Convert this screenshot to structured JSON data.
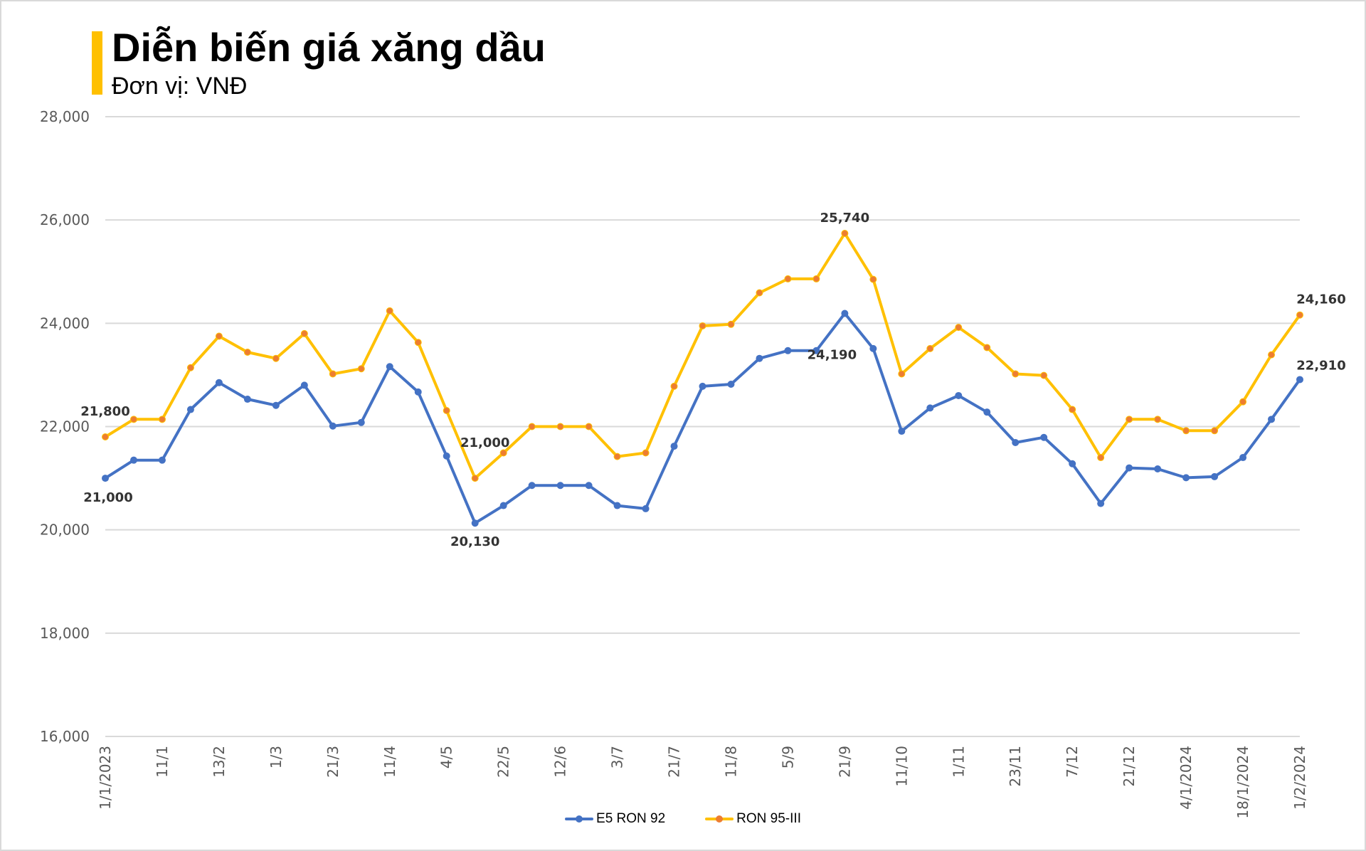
{
  "header": {
    "title": "Diễn biến giá xăng dầu",
    "subtitle": "Đơn vị: VNĐ"
  },
  "colors": {
    "accent": "#ffc000",
    "e5_line": "#4472c4",
    "ron95_line": "#ffc000",
    "ron95_marker": "#ed7d31",
    "grid": "#d9d9d9",
    "axis_text": "#595959"
  },
  "legend": {
    "items": [
      {
        "label": "E5 RON 92",
        "color": "#4472c4",
        "marker": "#4472c4"
      },
      {
        "label": "RON 95-III",
        "color": "#ffc000",
        "marker": "#ed7d31"
      }
    ]
  },
  "chart_data": {
    "type": "line",
    "title": "Diễn biến giá xăng dầu",
    "subtitle": "Đơn vị: VNĐ",
    "xlabel": "",
    "ylabel": "",
    "ylim": [
      16000,
      28000
    ],
    "yticks": [
      "16,000",
      "18,000",
      "20,000",
      "22,000",
      "24,000",
      "26,000",
      "28,000"
    ],
    "ytick_values": [
      16000,
      18000,
      20000,
      22000,
      24000,
      26000,
      28000
    ],
    "grid": true,
    "legend_position": "bottom",
    "xtick_labels": [
      "1/1/2023",
      "11/1",
      "13/2",
      "1/3",
      "21/3",
      "11/4",
      "4/5",
      "22/5",
      "12/6",
      "3/7",
      "21/7",
      "11/8",
      "5/9",
      "21/9",
      "11/10",
      "1/11",
      "23/11",
      "7/12",
      "21/12",
      "4/1/2024",
      "18/1/2024",
      "1/2/2024"
    ],
    "xtick_every": 2,
    "point_count": 43,
    "series": [
      {
        "name": "E5 RON 92",
        "color": "#4472c4",
        "values": [
          21000,
          21350,
          21350,
          22330,
          22850,
          22530,
          22410,
          22800,
          22010,
          22080,
          23160,
          22670,
          21430,
          20130,
          20470,
          20860,
          20860,
          20860,
          20470,
          20410,
          21620,
          22780,
          22820,
          23320,
          23470,
          23470,
          24190,
          23510,
          21910,
          22360,
          22600,
          22280,
          21690,
          21790,
          21280,
          20510,
          21200,
          21180,
          21010,
          21030,
          21400,
          22140,
          22910
        ]
      },
      {
        "name": "RON 95-III",
        "color": "#ffc000",
        "values": [
          21800,
          22140,
          22140,
          23140,
          23750,
          23440,
          23320,
          23800,
          23020,
          23120,
          24240,
          23630,
          22310,
          21000,
          21490,
          22000,
          22000,
          22000,
          21420,
          21490,
          22780,
          23950,
          23980,
          24590,
          24860,
          24860,
          25740,
          24850,
          23020,
          23510,
          23920,
          23530,
          23020,
          22990,
          22330,
          21400,
          22140,
          22140,
          21920,
          21920,
          22480,
          23390,
          24160
        ]
      }
    ],
    "annotations": [
      {
        "series": "RON 95-III",
        "index": 0,
        "text": "21,800"
      },
      {
        "series": "E5 RON 92",
        "index": 0,
        "text": "21,000"
      },
      {
        "series": "RON 95-III",
        "index": 13,
        "text": "21,000"
      },
      {
        "series": "E5 RON 92",
        "index": 13,
        "text": "20,130"
      },
      {
        "series": "RON 95-III",
        "index": 26,
        "text": "25,740"
      },
      {
        "series": "E5 RON 92",
        "index": 26,
        "text": "24,190"
      },
      {
        "series": "RON 95-III",
        "index": 42,
        "text": "24,160"
      },
      {
        "series": "E5 RON 92",
        "index": 42,
        "text": "22,910"
      }
    ]
  }
}
